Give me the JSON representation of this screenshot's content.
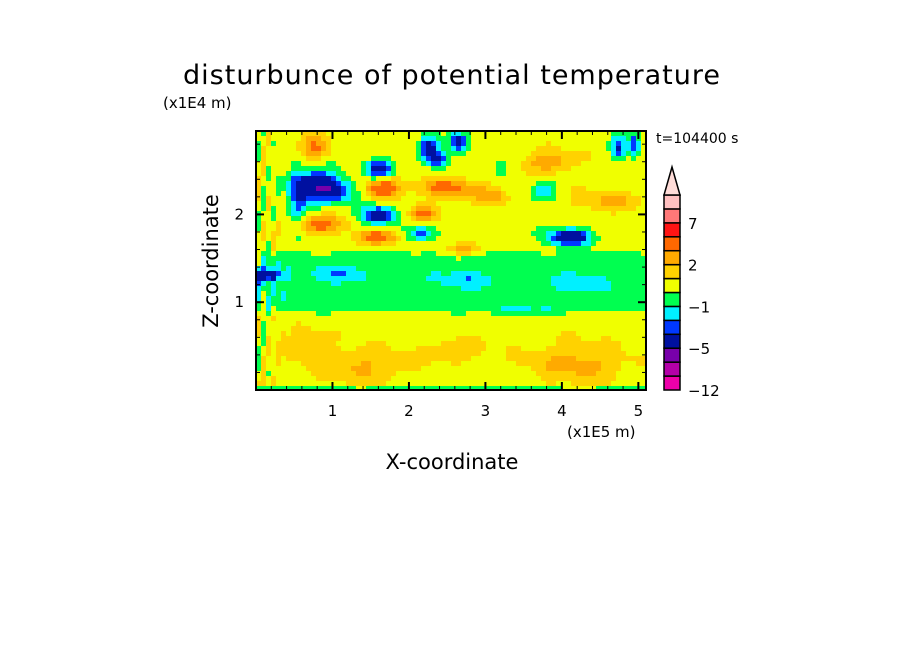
{
  "chart_data": {
    "type": "heatmap",
    "subtype": "filled-contour",
    "title": "disturbunce of potential temperature",
    "xlabel": "X-coordinate",
    "ylabel": "Z-coordinate",
    "x_unit_label": "(x1E5 m)",
    "y_unit_label": "(x1E4 m)",
    "time_label": "t=104400 s",
    "xlim": [
      0,
      5.1
    ],
    "ylim": [
      0,
      2.95
    ],
    "xticks": [
      1,
      2,
      3,
      4,
      5
    ],
    "yticks": [
      1,
      2
    ],
    "xtick_labels": [
      "1",
      "2",
      "3",
      "4",
      "5"
    ],
    "ytick_labels": [
      "1",
      "2"
    ],
    "levels": [
      -12,
      -9,
      -7,
      -5,
      -3,
      -2,
      -1,
      0,
      1,
      2,
      3,
      5,
      7,
      9,
      11
    ],
    "colors": [
      "#ee00aa",
      "#b400a8",
      "#7800aa",
      "#0010a0",
      "#0038ff",
      "#00f0ff",
      "#00ff50",
      "#f0ff00",
      "#ffd200",
      "#ffaa00",
      "#ff6800",
      "#ff1414",
      "#ff7878",
      "#ffc0c0",
      "#ffdcd8"
    ],
    "colorbar_labels": [
      {
        "value": 7,
        "label": "7"
      },
      {
        "value": 2,
        "label": "2"
      },
      {
        "value": -1,
        "label": "−1"
      },
      {
        "value": -5,
        "label": "−5"
      },
      {
        "value": -12,
        "label": "−12"
      }
    ],
    "colorbar_extend": "max",
    "field_description": "approximate anomaly features (x in 1E5 m, z in 1E4 m, amplitude in K)",
    "features": [
      {
        "x": 0.79,
        "z": 2.33,
        "rx": 0.28,
        "rz": 0.18,
        "amp": -5.0
      },
      {
        "x": 1.08,
        "z": 2.27,
        "rx": 0.25,
        "rz": 0.12,
        "amp": -3.2
      },
      {
        "x": 0.55,
        "z": 2.15,
        "rx": 0.12,
        "rz": 0.35,
        "amp": -3.0
      },
      {
        "x": 1.62,
        "z": 2.52,
        "rx": 0.18,
        "rz": 0.11,
        "amp": -4.5
      },
      {
        "x": 1.6,
        "z": 1.99,
        "rx": 0.22,
        "rz": 0.11,
        "amp": -4.5
      },
      {
        "x": 2.27,
        "z": 2.76,
        "rx": 0.13,
        "rz": 0.14,
        "amp": -4.5
      },
      {
        "x": 2.64,
        "z": 2.82,
        "rx": 0.12,
        "rz": 0.12,
        "amp": -4.5
      },
      {
        "x": 2.4,
        "z": 2.62,
        "rx": 0.12,
        "rz": 0.09,
        "amp": -3.2
      },
      {
        "x": 2.14,
        "z": 1.78,
        "rx": 0.17,
        "rz": 0.09,
        "amp": -3.0
      },
      {
        "x": 4.1,
        "z": 1.74,
        "rx": 0.3,
        "rz": 0.1,
        "amp": -5.0
      },
      {
        "x": 4.74,
        "z": 2.77,
        "rx": 0.1,
        "rz": 0.14,
        "amp": -3.5
      },
      {
        "x": 4.95,
        "z": 2.8,
        "rx": 0.07,
        "rz": 0.14,
        "amp": -3.5
      },
      {
        "x": 0.14,
        "z": 1.31,
        "rx": 0.2,
        "rz": 0.08,
        "amp": -4.0
      },
      {
        "x": 1.1,
        "z": 1.33,
        "rx": 0.4,
        "rz": 0.1,
        "amp": -1.4
      },
      {
        "x": 2.75,
        "z": 1.25,
        "rx": 0.45,
        "rz": 0.09,
        "amp": -1.3
      },
      {
        "x": 4.2,
        "z": 1.22,
        "rx": 0.4,
        "rz": 0.09,
        "amp": -1.3
      },
      {
        "x": 3.75,
        "z": 2.27,
        "rx": 0.18,
        "rz": 0.12,
        "amp": -1.8
      },
      {
        "x": 3.2,
        "z": 2.55,
        "rx": 0.1,
        "rz": 0.1,
        "amp": -1.8
      },
      {
        "x": 1.66,
        "z": 2.3,
        "rx": 0.22,
        "rz": 0.11,
        "amp": 3.8
      },
      {
        "x": 2.49,
        "z": 2.3,
        "rx": 0.35,
        "rz": 0.1,
        "amp": 3.2
      },
      {
        "x": 2.19,
        "z": 2.0,
        "rx": 0.18,
        "rz": 0.09,
        "amp": 2.6
      },
      {
        "x": 0.8,
        "z": 1.88,
        "rx": 0.3,
        "rz": 0.1,
        "amp": 3.2
      },
      {
        "x": 1.58,
        "z": 1.74,
        "rx": 0.25,
        "rz": 0.08,
        "amp": 3.2
      },
      {
        "x": 0.75,
        "z": 2.76,
        "rx": 0.18,
        "rz": 0.14,
        "amp": 2.6
      },
      {
        "x": 3.84,
        "z": 2.6,
        "rx": 0.3,
        "rz": 0.12,
        "amp": 2.2
      },
      {
        "x": 3.06,
        "z": 2.2,
        "rx": 0.2,
        "rz": 0.1,
        "amp": 2.2
      },
      {
        "x": 2.75,
        "z": 1.6,
        "rx": 0.25,
        "rz": 0.07,
        "amp": 2.0
      },
      {
        "x": 4.6,
        "z": 2.15,
        "rx": 0.4,
        "rz": 0.12,
        "amp": 1.6
      },
      {
        "x": 4.2,
        "z": 0.3,
        "rx": 0.6,
        "rz": 0.22,
        "amp": 1.8
      },
      {
        "x": 1.35,
        "z": 0.27,
        "rx": 0.6,
        "rz": 0.2,
        "amp": 1.5
      },
      {
        "x": 0.66,
        "z": 0.53,
        "rx": 0.25,
        "rz": 0.15,
        "amp": 1.6
      },
      {
        "x": 2.6,
        "z": 0.45,
        "rx": 0.4,
        "rz": 0.12,
        "amp": 1.2
      },
      {
        "x": 3.4,
        "z": 0.9,
        "rx": 0.4,
        "rz": 0.04,
        "amp": -1.4
      }
    ]
  }
}
